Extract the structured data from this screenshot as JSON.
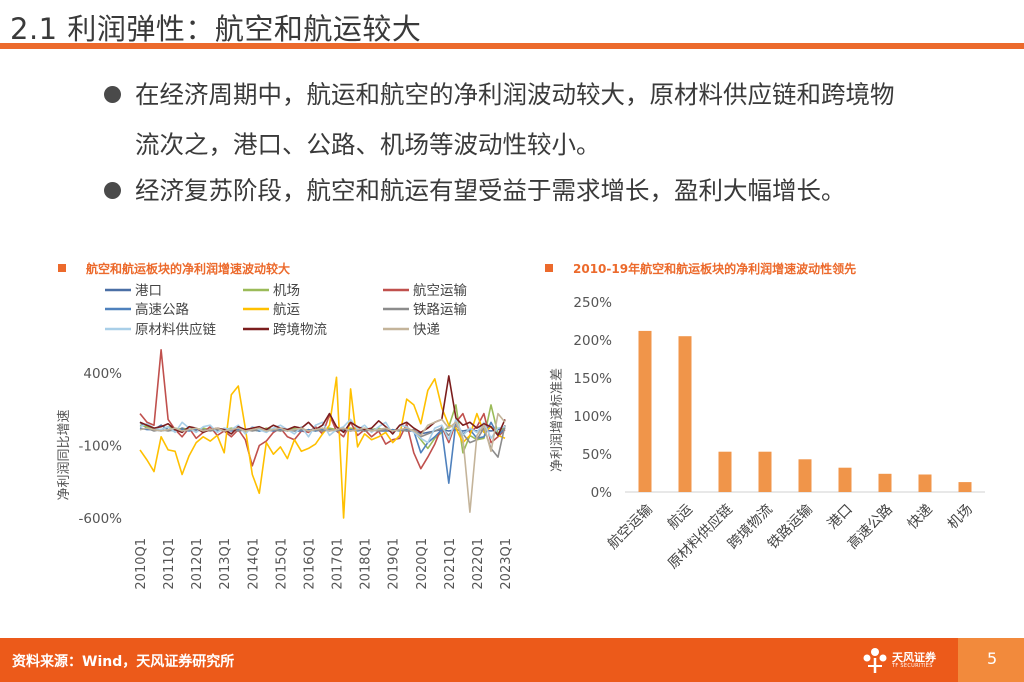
{
  "slide": {
    "title": "2.1 利润弹性：航空和航运较大",
    "bullets": [
      {
        "line1": "在经济周期中，航运和航空的净利润波动较大，原材料供应链和跨境物",
        "line2": "流次之，港口、公路、机场等波动性较小。"
      },
      {
        "line1": "经济复苏阶段，航空和航运有望受益于需求增长，盈利大幅增长。"
      }
    ]
  },
  "colors": {
    "accent": "#ec6a2c",
    "footer": "#ec5a1a",
    "bar": "#f0954a"
  },
  "chart_data": [
    {
      "type": "line",
      "title": "航空和航运板块的净利润增速波动较大",
      "ylabel": "净利润同比增速",
      "ylim": [
        -600,
        700
      ],
      "yticks": [
        {
          "v": 400,
          "label": "400%"
        },
        {
          "v": -100,
          "label": "-100%"
        },
        {
          "v": -600,
          "label": "-600%"
        }
      ],
      "x": [
        "2010Q1",
        "2010Q2",
        "2010Q3",
        "2010Q4",
        "2011Q1",
        "2011Q2",
        "2011Q3",
        "2011Q4",
        "2012Q1",
        "2012Q2",
        "2012Q3",
        "2012Q4",
        "2013Q1",
        "2013Q2",
        "2013Q3",
        "2013Q4",
        "2014Q1",
        "2014Q2",
        "2014Q3",
        "2014Q4",
        "2015Q1",
        "2015Q2",
        "2015Q3",
        "2015Q4",
        "2016Q1",
        "2016Q2",
        "2016Q3",
        "2016Q4",
        "2017Q1",
        "2017Q2",
        "2017Q3",
        "2017Q4",
        "2018Q1",
        "2018Q2",
        "2018Q3",
        "2018Q4",
        "2019Q1",
        "2019Q2",
        "2019Q3",
        "2019Q4",
        "2020Q1",
        "2020Q2",
        "2020Q3",
        "2020Q4",
        "2021Q1",
        "2021Q2",
        "2021Q3",
        "2021Q4",
        "2022Q1",
        "2022Q2",
        "2022Q3",
        "2022Q4",
        "2023Q1"
      ],
      "xticklabels": [
        "2010Q1",
        "2011Q1",
        "2012Q1",
        "2013Q1",
        "2014Q1",
        "2015Q1",
        "2016Q1",
        "2017Q1",
        "2018Q1",
        "2019Q1",
        "2020Q1",
        "2021Q1",
        "2022Q1",
        "2023Q1"
      ],
      "series": [
        {
          "name": "港口",
          "color": "#4a6fa5",
          "values": [
            60,
            20,
            10,
            40,
            10,
            0,
            20,
            10,
            10,
            0,
            10,
            10,
            10,
            10,
            0,
            10,
            10,
            0,
            10,
            0,
            10,
            10,
            0,
            0,
            0,
            10,
            0,
            10,
            0,
            10,
            0,
            10,
            0,
            10,
            0,
            0,
            0,
            10,
            0,
            0,
            -20,
            -10,
            0,
            10,
            0,
            10,
            0,
            10,
            0,
            10,
            0,
            10,
            20
          ]
        },
        {
          "name": "机场",
          "color": "#9bbb59",
          "values": [
            40,
            30,
            20,
            10,
            30,
            20,
            10,
            20,
            10,
            20,
            10,
            0,
            10,
            20,
            10,
            0,
            10,
            0,
            20,
            10,
            0,
            10,
            20,
            0,
            10,
            0,
            10,
            20,
            10,
            0,
            20,
            10,
            0,
            10,
            20,
            0,
            10,
            0,
            10,
            0,
            -60,
            -120,
            -50,
            -10,
            30,
            180,
            -150,
            -30,
            -60,
            -50,
            180,
            -20,
            30
          ]
        },
        {
          "name": "航空运输",
          "color": "#c0504d",
          "values": [
            120,
            60,
            40,
            560,
            80,
            10,
            -40,
            20,
            -50,
            -10,
            30,
            -30,
            0,
            -40,
            10,
            -60,
            -240,
            -100,
            -70,
            -10,
            20,
            -40,
            -60,
            0,
            -10,
            30,
            -20,
            110,
            0,
            -40,
            60,
            -30,
            10,
            -40,
            0,
            -90,
            -60,
            -50,
            50,
            -150,
            -260,
            -180,
            -90,
            30,
            -80,
            60,
            120,
            -10,
            30,
            120,
            -80,
            -40,
            10
          ]
        },
        {
          "name": "高速公路",
          "color": "#4f81bd",
          "values": [
            20,
            10,
            10,
            0,
            10,
            0,
            10,
            0,
            10,
            0,
            10,
            0,
            10,
            0,
            10,
            0,
            10,
            0,
            10,
            0,
            10,
            0,
            10,
            0,
            10,
            0,
            10,
            0,
            10,
            0,
            10,
            0,
            10,
            0,
            10,
            0,
            10,
            0,
            10,
            0,
            -150,
            -80,
            -40,
            10,
            -360,
            60,
            -20,
            10,
            -50,
            -40,
            60,
            -30,
            20
          ]
        },
        {
          "name": "航运",
          "color": "#ffc000",
          "values": [
            -130,
            -200,
            -280,
            -40,
            -130,
            -140,
            -300,
            -170,
            -80,
            -40,
            -70,
            -30,
            -150,
            250,
            310,
            20,
            -300,
            -430,
            -80,
            -160,
            -110,
            -190,
            -60,
            -140,
            -120,
            -90,
            -20,
            40,
            370,
            -640,
            290,
            -110,
            -20,
            -60,
            -40,
            -10,
            -80,
            -30,
            220,
            180,
            50,
            280,
            360,
            160,
            40,
            20,
            -80,
            -30,
            120,
            -10,
            30,
            -30,
            -50
          ]
        },
        {
          "name": "铁路运输",
          "color": "#8c8c8c",
          "values": [
            10,
            20,
            0,
            10,
            0,
            10,
            0,
            10,
            0,
            10,
            0,
            10,
            0,
            10,
            0,
            10,
            0,
            10,
            0,
            10,
            0,
            10,
            0,
            10,
            0,
            10,
            0,
            10,
            0,
            10,
            0,
            10,
            0,
            10,
            0,
            10,
            0,
            10,
            0,
            10,
            -40,
            -20,
            0,
            20,
            -30,
            40,
            -20,
            -80,
            -60,
            20,
            -120,
            -180,
            40
          ]
        },
        {
          "name": "原材料供应链",
          "color": "#a9cfe8",
          "values": [
            30,
            50,
            20,
            10,
            30,
            -10,
            60,
            20,
            -10,
            30,
            40,
            -10,
            20,
            10,
            40,
            -20,
            30,
            10,
            -10,
            20,
            40,
            10,
            -20,
            30,
            -40,
            40,
            60,
            -30,
            10,
            30,
            80,
            10,
            40,
            -10,
            30,
            60,
            -20,
            40,
            30,
            -10,
            -50,
            -80,
            20,
            40,
            -60,
            80,
            -30,
            20,
            -10,
            60,
            -50,
            20,
            30
          ]
        },
        {
          "name": "跨境物流",
          "color": "#7b1d1d",
          "values": [
            60,
            40,
            20,
            30,
            50,
            10,
            -10,
            30,
            20,
            -10,
            10,
            20,
            10,
            -20,
            30,
            10,
            20,
            30,
            10,
            40,
            20,
            10,
            30,
            20,
            60,
            10,
            40,
            120,
            30,
            -10,
            60,
            30,
            10,
            20,
            70,
            30,
            -20,
            40,
            60,
            20,
            -10,
            20,
            60,
            80,
            380,
            90,
            40,
            60,
            20,
            50,
            30,
            -30,
            80
          ]
        },
        {
          "name": "快递",
          "color": "#c4b49a",
          "values": [
            10,
            20,
            10,
            0,
            10,
            20,
            0,
            10,
            20,
            0,
            10,
            20,
            0,
            10,
            20,
            0,
            10,
            20,
            0,
            10,
            20,
            0,
            10,
            20,
            0,
            10,
            20,
            0,
            10,
            20,
            0,
            10,
            20,
            0,
            10,
            20,
            0,
            10,
            20,
            0,
            -30,
            40,
            60,
            80,
            20,
            60,
            -50,
            -560,
            -30,
            40,
            -140,
            120,
            60
          ]
        }
      ]
    },
    {
      "type": "bar",
      "title": "2010-19年航空和航运板块的净利润增速波动性领先",
      "ylabel": "净利润增速标准差",
      "ylim": [
        0,
        250
      ],
      "yticks": [
        {
          "v": 0,
          "label": "0%"
        },
        {
          "v": 50,
          "label": "50%"
        },
        {
          "v": 100,
          "label": "100%"
        },
        {
          "v": 150,
          "label": "150%"
        },
        {
          "v": 200,
          "label": "200%"
        },
        {
          "v": 250,
          "label": "250%"
        }
      ],
      "categories": [
        "航空运输",
        "航运",
        "原材料供应链",
        "跨境物流",
        "铁路运输",
        "港口",
        "高速公路",
        "快递",
        "机场"
      ],
      "values": [
        212,
        205,
        53,
        53,
        43,
        32,
        24,
        23,
        13
      ]
    }
  ],
  "footer": {
    "source": "资料来源：Wind，天风证券研究所",
    "brand": "天风证券",
    "brand_sub": "TF SECURITIES",
    "page": "5"
  }
}
